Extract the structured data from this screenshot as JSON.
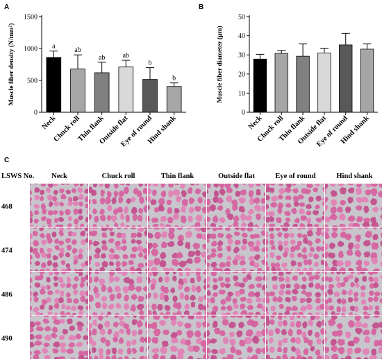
{
  "panel_labels": {
    "a": "A",
    "b": "B",
    "c": "C"
  },
  "chart_data": [
    {
      "type": "bar",
      "panel": "A",
      "categories": [
        "Neck",
        "Chuck roll",
        "Thin flank",
        "Outside flat",
        "Eye of round",
        "Hind shank"
      ],
      "values": [
        860,
        680,
        620,
        710,
        515,
        405
      ],
      "errors": [
        100,
        220,
        165,
        105,
        185,
        55
      ],
      "letters": [
        "a",
        "ab",
        "ab",
        "ab",
        "b",
        "b"
      ],
      "colors": [
        "#000000",
        "#a6a6a6",
        "#808080",
        "#d9d9d9",
        "#595959",
        "#a6a6a6"
      ],
      "ylabel": "Muscle fiber density (N/mm²)",
      "ylim": [
        0,
        1500
      ],
      "yticks": [
        0,
        500,
        1000,
        1500
      ]
    },
    {
      "type": "bar",
      "panel": "B",
      "categories": [
        "Neck",
        "Chuck roll",
        "Thin flank",
        "Outside flat",
        "Eye of round",
        "Hind shank"
      ],
      "values": [
        27.8,
        30.8,
        29.3,
        31.0,
        35.2,
        33.0
      ],
      "errors": [
        2.5,
        1.5,
        6.5,
        2.5,
        6.0,
        2.8
      ],
      "letters": [
        "",
        "",
        "",
        "",
        "",
        ""
      ],
      "colors": [
        "#000000",
        "#a6a6a6",
        "#808080",
        "#d9d9d9",
        "#595959",
        "#a6a6a6"
      ],
      "ylabel": "Muscle fiber diameter (μm)",
      "ylim": [
        0,
        50
      ],
      "yticks": [
        0,
        10,
        20,
        30,
        40,
        50
      ]
    }
  ],
  "histology": {
    "corner_label": "LSWS No.",
    "columns": [
      "Neck",
      "Chuck roll",
      "Thin flank",
      "Outside flat",
      "Eye of round",
      "Hind shank"
    ],
    "rows": [
      "468",
      "474",
      "486",
      "490"
    ],
    "stain_colors": {
      "background": "#c9c5cc",
      "fiber": "#d6609e",
      "fiber_dark": "#c24c8c",
      "fiber_light": "#e27fb5"
    }
  }
}
